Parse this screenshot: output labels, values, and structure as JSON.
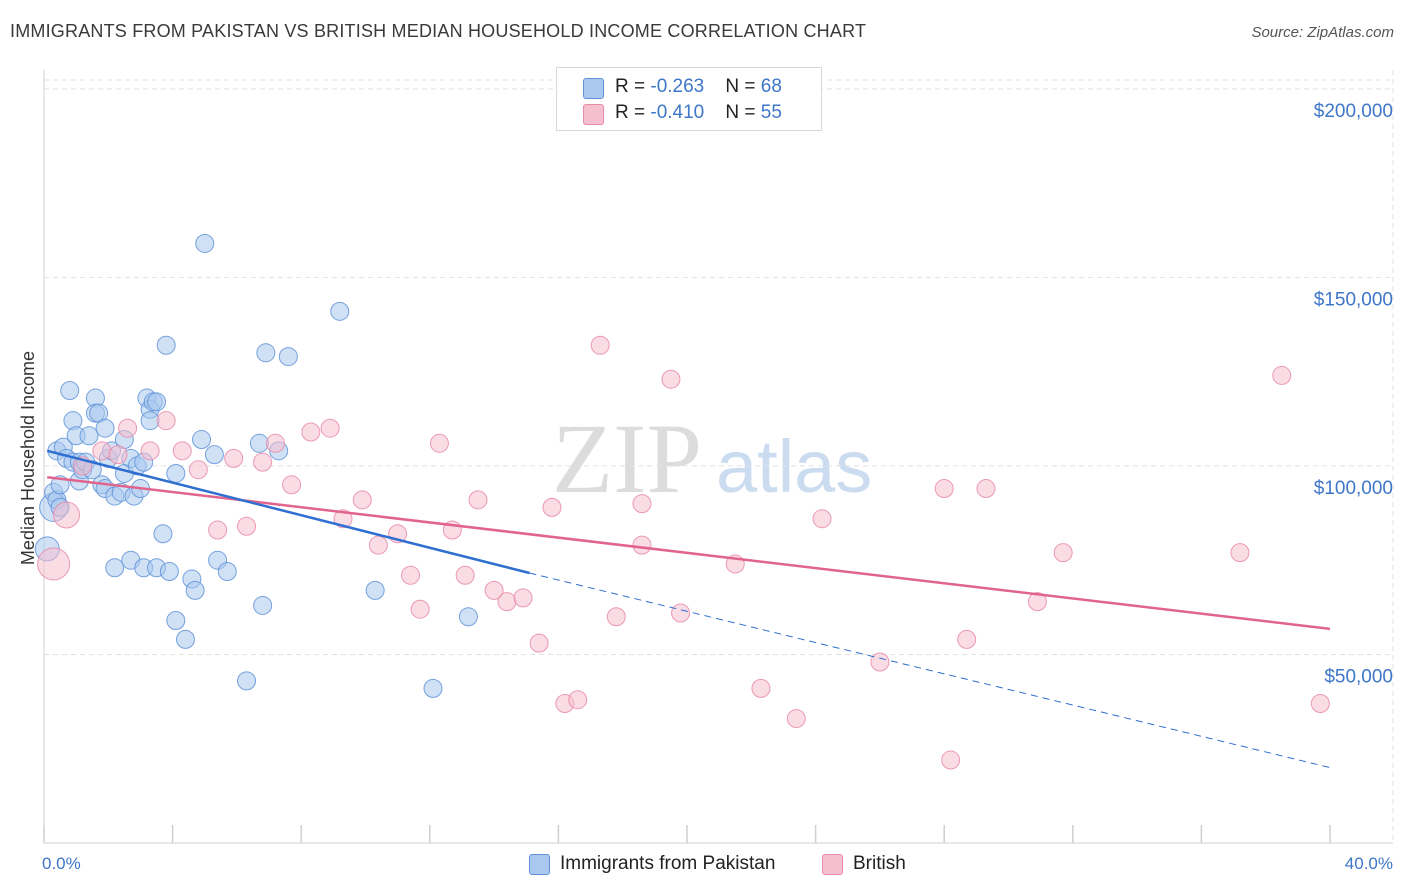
{
  "header": {
    "title": "IMMIGRANTS FROM PAKISTAN VS BRITISH MEDIAN HOUSEHOLD INCOME CORRELATION CHART",
    "source": "Source: ZipAtlas.com"
  },
  "colors": {
    "blue_fill": "#aac8ef",
    "blue_stroke": "#5f93d8",
    "blue_line": "#2f6fd1",
    "pink_fill": "#f6bfd0",
    "pink_stroke": "#e88aa8",
    "pink_line": "#e0648e",
    "tick_text": "#3e76c8",
    "grid": "#e2e2e2"
  },
  "legend_top": {
    "rows": [
      {
        "r_label": "R = ",
        "r_value": "-0.263",
        "n_label": "N = ",
        "n_value": "68"
      },
      {
        "r_label": "R = ",
        "r_value": "-0.410",
        "n_label": "N = ",
        "n_value": "55"
      }
    ]
  },
  "legend_bottom": {
    "items": [
      "Immigrants from Pakistan",
      "British"
    ]
  },
  "watermark": {
    "zip": "ZIP",
    "atlas": "atlas"
  },
  "chart_data": {
    "type": "scatter",
    "ylabel": "Median Household Income",
    "xlim": [
      0,
      40
    ],
    "ylim": [
      0,
      205000
    ],
    "x_tick_labels": [
      "0.0%",
      "40.0%"
    ],
    "y_ticks": [
      50000,
      100000,
      150000,
      200000
    ],
    "y_tick_labels": [
      "$50,000",
      "$100,000",
      "$150,000",
      "$200,000"
    ],
    "grid": true,
    "series": [
      {
        "name": "Immigrants from Pakistan",
        "trend": {
          "x": [
            0.1,
            15.1
          ],
          "y": [
            104000,
            71600
          ],
          "dashed_to": {
            "x": 40.0,
            "y": 20000
          }
        },
        "points": [
          [
            0.1,
            78000,
            12
          ],
          [
            0.3,
            89000,
            14
          ],
          [
            0.3,
            93000,
            9
          ],
          [
            0.4,
            91000,
            9
          ],
          [
            0.4,
            104000,
            9
          ],
          [
            0.5,
            89000,
            9
          ],
          [
            0.6,
            105000,
            9
          ],
          [
            0.7,
            102000,
            9
          ],
          [
            0.8,
            120000,
            9
          ],
          [
            0.9,
            112000,
            9
          ],
          [
            0.9,
            101000,
            9
          ],
          [
            1.0,
            108000,
            9
          ],
          [
            1.1,
            101000,
            9
          ],
          [
            1.1,
            96000,
            9
          ],
          [
            1.2,
            99000,
            9
          ],
          [
            1.3,
            101000,
            9
          ],
          [
            1.4,
            108000,
            9
          ],
          [
            1.5,
            99000,
            9
          ],
          [
            1.6,
            118000,
            9
          ],
          [
            1.6,
            114000,
            9
          ],
          [
            1.7,
            114000,
            9
          ],
          [
            1.8,
            95000,
            9
          ],
          [
            1.9,
            110000,
            9
          ],
          [
            1.9,
            94000,
            9
          ],
          [
            2.0,
            102000,
            9
          ],
          [
            2.1,
            104000,
            9
          ],
          [
            2.2,
            92000,
            9
          ],
          [
            2.2,
            73000,
            9
          ],
          [
            2.4,
            93000,
            9
          ],
          [
            2.5,
            98000,
            9
          ],
          [
            2.5,
            107000,
            9
          ],
          [
            2.7,
            102000,
            9
          ],
          [
            2.7,
            75000,
            9
          ],
          [
            2.8,
            92000,
            9
          ],
          [
            2.9,
            100000,
            9
          ],
          [
            3.0,
            94000,
            9
          ],
          [
            3.1,
            73000,
            9
          ],
          [
            3.1,
            101000,
            9
          ],
          [
            3.2,
            118000,
            9
          ],
          [
            3.3,
            115000,
            9
          ],
          [
            3.3,
            112000,
            9
          ],
          [
            3.4,
            117000,
            9
          ],
          [
            3.5,
            117000,
            9
          ],
          [
            3.5,
            73000,
            9
          ],
          [
            3.7,
            82000,
            9
          ],
          [
            3.8,
            132000,
            9
          ],
          [
            3.9,
            72000,
            9
          ],
          [
            4.1,
            59000,
            9
          ],
          [
            4.1,
            98000,
            9
          ],
          [
            4.4,
            54000,
            9
          ],
          [
            4.6,
            70000,
            9
          ],
          [
            4.7,
            67000,
            9
          ],
          [
            4.9,
            107000,
            9
          ],
          [
            5.0,
            159000,
            9
          ],
          [
            5.3,
            103000,
            9
          ],
          [
            5.4,
            75000,
            9
          ],
          [
            5.7,
            72000,
            9
          ],
          [
            6.3,
            43000,
            9
          ],
          [
            6.7,
            106000,
            9
          ],
          [
            6.8,
            63000,
            9
          ],
          [
            6.9,
            130000,
            9
          ],
          [
            7.3,
            104000,
            9
          ],
          [
            7.6,
            129000,
            9
          ],
          [
            9.2,
            141000,
            9
          ],
          [
            10.3,
            67000,
            9
          ],
          [
            12.1,
            41000,
            9
          ],
          [
            13.2,
            60000,
            9
          ],
          [
            0.5,
            95000,
            9
          ]
        ]
      },
      {
        "name": "British",
        "trend": {
          "x": [
            0.1,
            40.0
          ],
          "y": [
            97000,
            56800
          ]
        },
        "points": [
          [
            0.3,
            74000,
            16
          ],
          [
            0.7,
            87000,
            13
          ],
          [
            1.2,
            100000,
            9
          ],
          [
            1.8,
            104000,
            9
          ],
          [
            2.3,
            103000,
            9
          ],
          [
            2.6,
            110000,
            9
          ],
          [
            3.3,
            104000,
            9
          ],
          [
            3.8,
            112000,
            9
          ],
          [
            4.3,
            104000,
            9
          ],
          [
            4.8,
            99000,
            9
          ],
          [
            5.4,
            83000,
            9
          ],
          [
            5.9,
            102000,
            9
          ],
          [
            6.3,
            84000,
            9
          ],
          [
            6.8,
            101000,
            9
          ],
          [
            7.2,
            106000,
            9
          ],
          [
            7.7,
            95000,
            9
          ],
          [
            8.3,
            109000,
            9
          ],
          [
            8.9,
            110000,
            9
          ],
          [
            9.3,
            86000,
            9
          ],
          [
            9.9,
            91000,
            9
          ],
          [
            10.4,
            79000,
            9
          ],
          [
            11.0,
            82000,
            9
          ],
          [
            11.4,
            71000,
            9
          ],
          [
            11.7,
            62000,
            9
          ],
          [
            12.3,
            106000,
            9
          ],
          [
            12.7,
            83000,
            9
          ],
          [
            13.1,
            71000,
            9
          ],
          [
            13.5,
            91000,
            9
          ],
          [
            14.0,
            67000,
            9
          ],
          [
            14.4,
            64000,
            9
          ],
          [
            14.9,
            65000,
            9
          ],
          [
            15.4,
            53000,
            9
          ],
          [
            15.8,
            89000,
            9
          ],
          [
            16.2,
            37000,
            9
          ],
          [
            16.6,
            38000,
            9
          ],
          [
            17.3,
            132000,
            9
          ],
          [
            17.8,
            60000,
            9
          ],
          [
            18.6,
            79000,
            9
          ],
          [
            18.6,
            90000,
            9
          ],
          [
            19.5,
            123000,
            9
          ],
          [
            19.8,
            61000,
            9
          ],
          [
            21.5,
            74000,
            9
          ],
          [
            22.3,
            41000,
            9
          ],
          [
            23.4,
            33000,
            9
          ],
          [
            24.2,
            86000,
            9
          ],
          [
            26.0,
            48000,
            9
          ],
          [
            28.0,
            94000,
            9
          ],
          [
            28.2,
            22000,
            9
          ],
          [
            28.7,
            54000,
            9
          ],
          [
            29.3,
            94000,
            9
          ],
          [
            30.9,
            64000,
            9
          ],
          [
            31.7,
            77000,
            9
          ],
          [
            37.2,
            77000,
            9
          ],
          [
            38.5,
            124000,
            9
          ],
          [
            39.7,
            37000,
            9
          ]
        ]
      }
    ]
  }
}
